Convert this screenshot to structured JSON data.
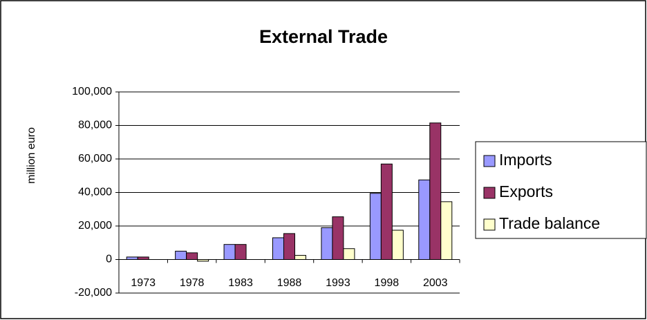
{
  "chart_data": {
    "type": "bar",
    "title": "External Trade",
    "y_label": "million euro",
    "categories": [
      "1973",
      "1978",
      "1983",
      "1988",
      "1993",
      "1998",
      "2003"
    ],
    "series": [
      {
        "name": "Imports",
        "color": "#9999ff",
        "values": [
          1500,
          5000,
          9000,
          13000,
          19000,
          39500,
          47500
        ]
      },
      {
        "name": "Exports",
        "color": "#993366",
        "values": [
          1500,
          4000,
          9000,
          15500,
          25500,
          57000,
          81500
        ]
      },
      {
        "name": "Trade balance",
        "color": "#ffffcc",
        "values": [
          0,
          -1000,
          0,
          2500,
          6500,
          17500,
          34500
        ]
      }
    ],
    "ylim": [
      -20000,
      100000
    ],
    "yticks": [
      {
        "value": -20000,
        "label": "-20,000"
      },
      0,
      {
        "value": 20000,
        "label": "20,000"
      },
      {
        "value": 40000,
        "label": "40,000"
      },
      {
        "value": 60000,
        "label": "60,000"
      },
      {
        "value": 80000,
        "label": "80,000"
      },
      {
        "value": 100000,
        "label": "100,000"
      }
    ],
    "grid": true,
    "legend": "right"
  }
}
